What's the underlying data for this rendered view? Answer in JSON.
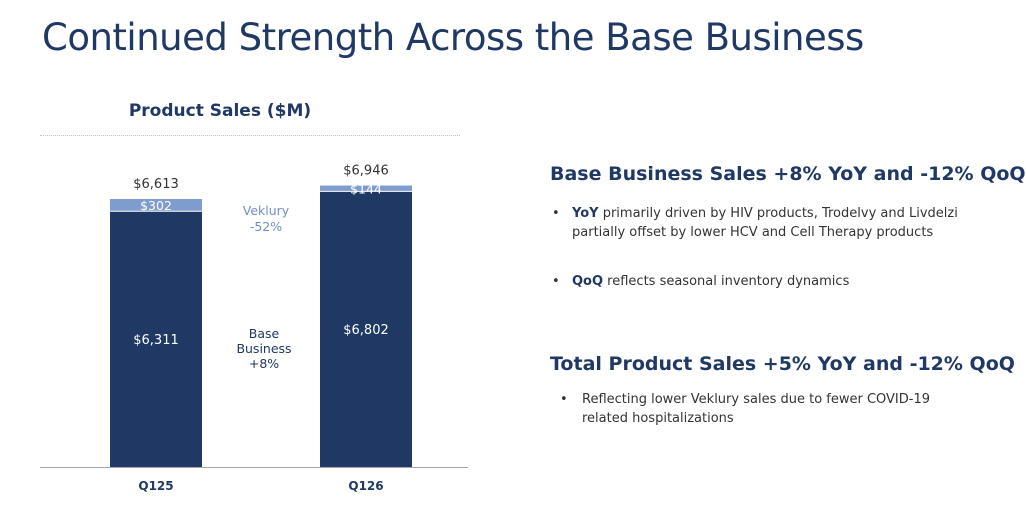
{
  "page_title": "Continued Strength Across the Base Business",
  "chart_data": {
    "type": "bar",
    "stacked": true,
    "title": "Product Sales ($M)",
    "categories": [
      "Q125",
      "Q126"
    ],
    "series": [
      {
        "name": "Base Business",
        "values": [
          6311,
          6802
        ],
        "labels": [
          "$6,311",
          "$6,802"
        ],
        "color": "#1f3864"
      },
      {
        "name": "Veklury",
        "values": [
          302,
          144
        ],
        "labels": [
          "$302",
          "$144"
        ],
        "color": "#7f9ccf"
      }
    ],
    "totals": [
      6613,
      6946
    ],
    "total_labels": [
      "$6,613",
      "$6,946"
    ],
    "annotations": {
      "veklury": [
        "Veklury",
        "-52%"
      ],
      "base": [
        "Base",
        "Business",
        "+8%"
      ]
    },
    "ylim": [
      0,
      7650
    ],
    "grid": false
  },
  "sections": [
    {
      "heading": "Base Business Sales +8% YoY and -12% QoQ",
      "bullets": [
        {
          "bold": "YoY",
          "text": " primarily driven by HIV products, Trodelvy and Livdelzi partially offset by lower HCV and Cell Therapy products"
        },
        {
          "bold": "QoQ",
          "text": " reflects seasonal inventory dynamics"
        }
      ]
    },
    {
      "heading": "Total Product Sales +5% YoY and -12% QoQ",
      "bullets": [
        {
          "bold": "",
          "text": "Reflecting lower Veklury sales due to fewer COVID-19 related hospitalizations"
        }
      ]
    }
  ],
  "colors": {
    "navy": "#1f3864",
    "veklury": "#7f9ccf",
    "annotation_blue": "#6f8fc7"
  }
}
